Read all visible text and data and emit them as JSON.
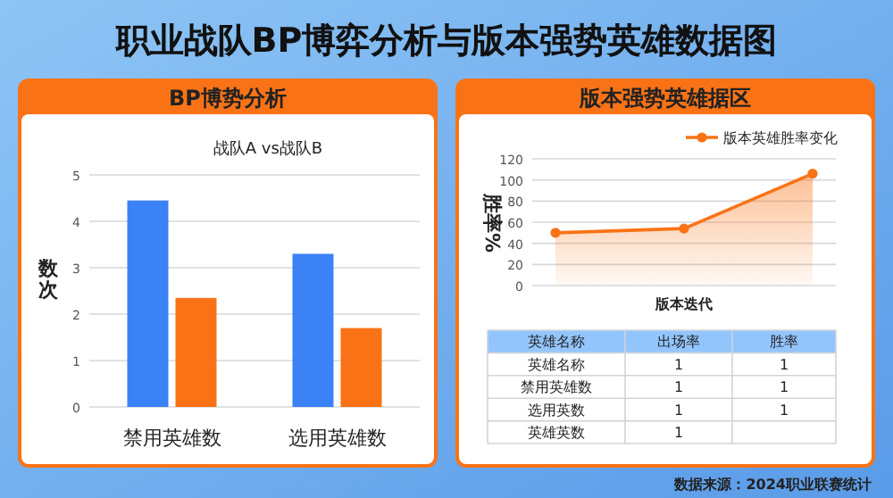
{
  "chart_data": [
    {
      "type": "bar",
      "title": "BP博势分析",
      "subtitle": "战队A vs战队B",
      "ylabel": "数次",
      "annotations": [
        "职业战队BP博弈分析与版本强势英雄数据图"
      ],
      "categories": [
        "禁用英雄数",
        "选用英雄数"
      ],
      "series": [
        {
          "color": "#3b82f6",
          "values": [
            4.45,
            3.3
          ]
        },
        {
          "color": "#f97316",
          "values": [
            2.35,
            1.7
          ]
        }
      ],
      "ylim": [
        0,
        5
      ],
      "yticks": [
        0,
        1,
        2,
        3,
        4,
        5
      ],
      "grid": "y"
    },
    {
      "type": "area",
      "title": "版本强势英雄据区",
      "xlabel": "版本迭代",
      "ylabel": "胜率%",
      "categories": [
        null,
        null,
        null
      ],
      "series": [
        {
          "name": "版本英雄胜率变化",
          "color": "#f97316",
          "values": [
            50,
            54,
            106
          ]
        }
      ],
      "ylim": [
        0,
        120
      ],
      "yticks": [
        0,
        20,
        40,
        60,
        80,
        100,
        120
      ],
      "grid": "y",
      "legend": "top right",
      "marker": "circle",
      "line_style": "solid"
    },
    {
      "type": "other",
      "categories": [
        "英雄名称",
        "出场率",
        "胜率"
      ],
      "y_categories": [
        "英雄名称",
        "禁用英雄数",
        "选用英数",
        "英雄英数"
      ],
      "cell_labels": [
        [
          "1",
          "1"
        ],
        [
          "1",
          "1"
        ],
        [
          "1",
          "1"
        ],
        [
          "1",
          null
        ]
      ],
      "annotations": [
        "数据来源：2024职业联赛统计"
      ]
    }
  ]
}
